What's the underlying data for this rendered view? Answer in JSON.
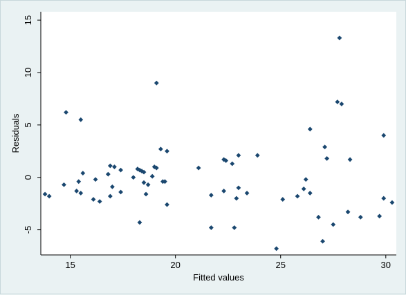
{
  "chart_data": {
    "type": "scatter",
    "title": "",
    "xlabel": "Fitted values",
    "ylabel": "Residuals",
    "xlim": [
      13.6,
      30.5
    ],
    "ylim": [
      -7.4,
      15.8
    ],
    "x_ticks": [
      15,
      20,
      25,
      30
    ],
    "x_tick_labels": [
      "15",
      "20",
      "25",
      "30"
    ],
    "y_ticks": [
      -5,
      0,
      5,
      10,
      15
    ],
    "y_tick_labels": [
      "-5",
      "0",
      "5",
      "10",
      "15"
    ],
    "grid": false,
    "legend": "none",
    "marker": "diamond",
    "colors": {
      "background": "#eaf2f3",
      "plot_area": "#ffffff",
      "marker": "#1a476f",
      "axis": "#000000"
    },
    "points": [
      {
        "x": 13.8,
        "y": -1.6
      },
      {
        "x": 14.0,
        "y": -1.8
      },
      {
        "x": 14.7,
        "y": -0.7
      },
      {
        "x": 14.8,
        "y": 6.2
      },
      {
        "x": 15.3,
        "y": -1.3
      },
      {
        "x": 15.4,
        "y": -0.4
      },
      {
        "x": 15.5,
        "y": 5.5
      },
      {
        "x": 15.5,
        "y": -1.5
      },
      {
        "x": 15.6,
        "y": 0.4
      },
      {
        "x": 16.1,
        "y": -2.1
      },
      {
        "x": 16.2,
        "y": -0.2
      },
      {
        "x": 16.4,
        "y": -2.3
      },
      {
        "x": 16.8,
        "y": 0.3
      },
      {
        "x": 16.9,
        "y": -1.8
      },
      {
        "x": 16.9,
        "y": 1.1
      },
      {
        "x": 17.0,
        "y": -0.9
      },
      {
        "x": 17.1,
        "y": 1.0
      },
      {
        "x": 17.4,
        "y": 0.7
      },
      {
        "x": 17.4,
        "y": -1.4
      },
      {
        "x": 18.0,
        "y": 0.0
      },
      {
        "x": 18.2,
        "y": 0.8
      },
      {
        "x": 18.3,
        "y": 0.7
      },
      {
        "x": 18.3,
        "y": -4.3
      },
      {
        "x": 18.4,
        "y": 0.6
      },
      {
        "x": 18.5,
        "y": 0.5
      },
      {
        "x": 18.5,
        "y": -0.5
      },
      {
        "x": 18.6,
        "y": -1.6
      },
      {
        "x": 18.7,
        "y": -0.7
      },
      {
        "x": 18.9,
        "y": 0.1
      },
      {
        "x": 19.0,
        "y": 1.0
      },
      {
        "x": 19.1,
        "y": 0.9
      },
      {
        "x": 19.1,
        "y": 9.0
      },
      {
        "x": 19.3,
        "y": 2.7
      },
      {
        "x": 19.4,
        "y": -0.4
      },
      {
        "x": 19.5,
        "y": -0.4
      },
      {
        "x": 19.6,
        "y": 2.5
      },
      {
        "x": 19.6,
        "y": -2.6
      },
      {
        "x": 21.1,
        "y": 0.9
      },
      {
        "x": 21.7,
        "y": -1.7
      },
      {
        "x": 21.7,
        "y": -4.8
      },
      {
        "x": 22.3,
        "y": 1.7
      },
      {
        "x": 22.3,
        "y": -1.3
      },
      {
        "x": 22.4,
        "y": 1.6
      },
      {
        "x": 22.7,
        "y": 1.3
      },
      {
        "x": 22.8,
        "y": -4.8
      },
      {
        "x": 22.9,
        "y": -2.0
      },
      {
        "x": 23.0,
        "y": 2.1
      },
      {
        "x": 23.0,
        "y": -1.0
      },
      {
        "x": 23.4,
        "y": -1.5
      },
      {
        "x": 23.9,
        "y": 2.1
      },
      {
        "x": 24.8,
        "y": -6.8
      },
      {
        "x": 25.1,
        "y": -2.1
      },
      {
        "x": 25.8,
        "y": -1.8
      },
      {
        "x": 26.1,
        "y": -1.1
      },
      {
        "x": 26.2,
        "y": -0.2
      },
      {
        "x": 26.4,
        "y": 4.6
      },
      {
        "x": 26.4,
        "y": -1.5
      },
      {
        "x": 26.8,
        "y": -3.8
      },
      {
        "x": 27.0,
        "y": -6.1
      },
      {
        "x": 27.1,
        "y": 2.9
      },
      {
        "x": 27.2,
        "y": 1.8
      },
      {
        "x": 27.5,
        "y": -4.5
      },
      {
        "x": 27.7,
        "y": 7.2
      },
      {
        "x": 27.8,
        "y": 13.3
      },
      {
        "x": 27.9,
        "y": 7.0
      },
      {
        "x": 28.2,
        "y": -3.3
      },
      {
        "x": 28.3,
        "y": 1.7
      },
      {
        "x": 28.8,
        "y": -3.8
      },
      {
        "x": 29.7,
        "y": -3.7
      },
      {
        "x": 29.9,
        "y": 4.0
      },
      {
        "x": 29.9,
        "y": -2.0
      },
      {
        "x": 30.3,
        "y": -2.4
      }
    ]
  }
}
